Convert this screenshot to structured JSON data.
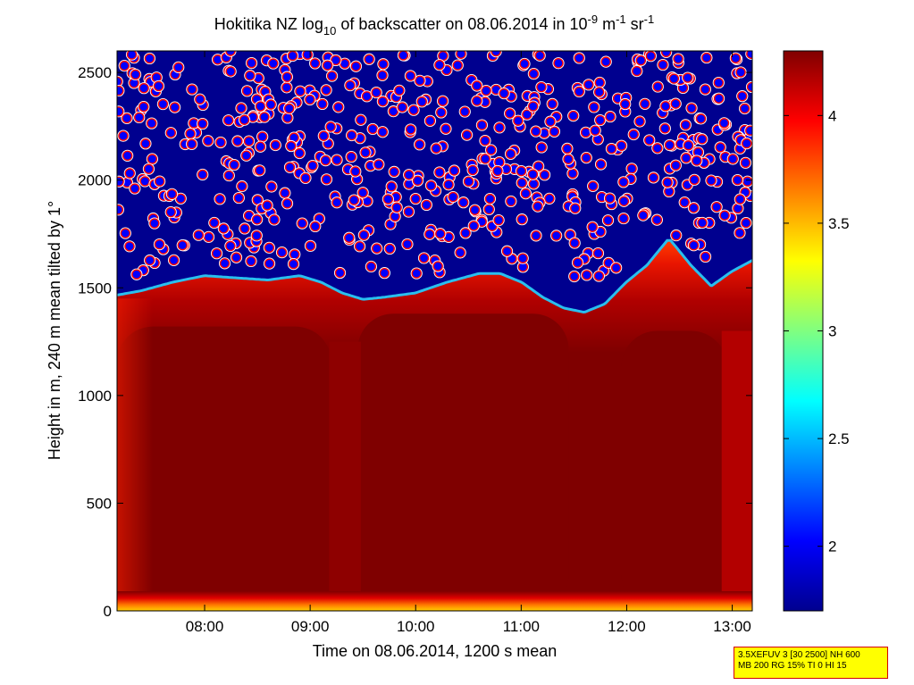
{
  "chart_data": {
    "type": "heatmap",
    "title": {
      "part1": "Hokitika NZ log",
      "sub10": "10",
      "part2": " of backscatter on 08.06.2014 in 10",
      "sup_exp": "-9",
      "part3": " m",
      "sup_m": "-1",
      "part4": " sr",
      "sup_sr": "-1"
    },
    "xlabel": "Time on 08.06.2014, 1200 s mean",
    "ylabel": "Height in m, 240 m mean tilted by 1°",
    "x_ticks": [
      "08:00",
      "09:00",
      "10:00",
      "11:00",
      "12:00",
      "13:00"
    ],
    "x_tick_hours": [
      8,
      9,
      10,
      11,
      12,
      13
    ],
    "xlim_hours": [
      7.17,
      13.19
    ],
    "y_ticks": [
      0,
      500,
      1000,
      1500,
      2000,
      2500
    ],
    "ylim": [
      0,
      2600
    ],
    "colorbar": {
      "ticks": [
        2,
        2.5,
        3,
        3.5,
        4
      ],
      "range": [
        1.7,
        4.3
      ],
      "colormap": "jet"
    },
    "boundary_layer_top_m": [
      [
        7.17,
        1460
      ],
      [
        7.4,
        1480
      ],
      [
        7.7,
        1520
      ],
      [
        8.0,
        1550
      ],
      [
        8.3,
        1540
      ],
      [
        8.6,
        1530
      ],
      [
        8.9,
        1550
      ],
      [
        9.1,
        1520
      ],
      [
        9.3,
        1470
      ],
      [
        9.5,
        1440
      ],
      [
        9.7,
        1450
      ],
      [
        10.0,
        1470
      ],
      [
        10.3,
        1520
      ],
      [
        10.6,
        1560
      ],
      [
        10.8,
        1560
      ],
      [
        11.0,
        1520
      ],
      [
        11.2,
        1450
      ],
      [
        11.4,
        1400
      ],
      [
        11.6,
        1380
      ],
      [
        11.8,
        1420
      ],
      [
        12.0,
        1520
      ],
      [
        12.2,
        1600
      ],
      [
        12.4,
        1720
      ],
      [
        12.6,
        1600
      ],
      [
        12.8,
        1500
      ],
      [
        13.0,
        1570
      ],
      [
        13.19,
        1620
      ]
    ],
    "cloud_layer_m": {
      "min": 1550,
      "max": 2600
    }
  },
  "info_box": {
    "line1": "3.5XEFUV 3 [30 2500] NH 600",
    "line2": "MB 200 RG 15% TI 0 HI 15"
  },
  "colors": {
    "background_top": "#00008f",
    "bulk": "#7f0000",
    "cloud_ring": "#ffffff",
    "cloud_fill": "#0000ff",
    "cloud_edge": "#ff0000",
    "info_box_bg": "#ffff00",
    "info_box_border": "#d40000"
  }
}
